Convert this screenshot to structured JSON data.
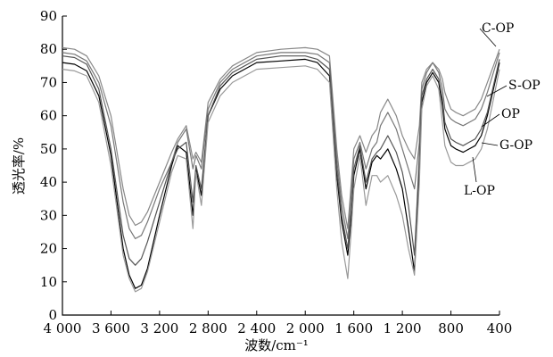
{
  "chart_data": {
    "type": "line",
    "title": "",
    "xlabel": "波数/cm⁻¹",
    "ylabel": "透光率/%",
    "xlim": [
      4000,
      400
    ],
    "ylim": [
      0,
      90
    ],
    "x_reversed": true,
    "grid": false,
    "x_ticks": [
      4000,
      3600,
      3200,
      2800,
      2400,
      2000,
      1600,
      1200,
      800,
      400
    ],
    "x_tick_labels": [
      "4 000",
      "3 600",
      "3 200",
      "2 800",
      "2 400",
      "2 000",
      "1 600",
      "1 200",
      "800",
      "400"
    ],
    "y_ticks": [
      0,
      10,
      20,
      30,
      40,
      50,
      60,
      70,
      80,
      90
    ],
    "y_tick_labels": [
      "0",
      "10",
      "20",
      "30",
      "40",
      "50",
      "60",
      "70",
      "80",
      "90"
    ],
    "x": [
      4000,
      3900,
      3800,
      3700,
      3600,
      3500,
      3450,
      3400,
      3350,
      3300,
      3200,
      3100,
      3050,
      2980,
      2925,
      2900,
      2855,
      2800,
      2700,
      2600,
      2400,
      2200,
      2000,
      1900,
      1800,
      1740,
      1700,
      1650,
      1620,
      1600,
      1550,
      1500,
      1450,
      1410,
      1380,
      1320,
      1250,
      1200,
      1150,
      1100,
      1060,
      1040,
      1000,
      950,
      900,
      870,
      850,
      820,
      800,
      760,
      700,
      650,
      600,
      550,
      500,
      400
    ],
    "series": [
      {
        "name": "C-OP",
        "color": "#888888",
        "values": [
          80.5,
          80,
          78,
          72,
          60,
          38,
          30,
          27,
          28,
          31,
          40,
          49,
          53,
          57,
          47,
          49,
          46,
          64,
          71,
          75,
          79,
          80,
          80.5,
          80,
          78,
          50,
          36,
          26,
          40,
          50,
          54,
          49,
          54,
          56,
          61,
          65,
          60,
          54,
          50,
          47,
          57,
          70,
          74,
          76,
          74,
          71,
          67,
          64,
          62,
          61,
          60,
          61,
          62,
          65,
          70,
          80
        ]
      },
      {
        "name": "S-OP",
        "color": "#777777",
        "values": [
          79,
          78.5,
          76.5,
          70,
          57,
          34,
          26,
          23,
          24,
          28,
          38,
          46,
          52,
          56,
          44,
          48,
          44,
          62,
          70,
          74,
          78,
          79,
          79,
          78.5,
          76,
          47,
          33,
          23,
          37,
          47,
          52,
          44,
          50,
          52,
          57,
          61,
          56,
          50,
          44,
          38,
          52,
          68,
          73,
          76,
          73,
          68,
          62,
          60,
          59,
          58,
          57,
          58,
          59,
          62,
          67,
          79
        ]
      },
      {
        "name": "OP",
        "color": "#000000",
        "values": [
          76,
          75.5,
          73.5,
          66,
          48,
          20,
          12,
          8,
          9,
          14,
          30,
          45,
          51,
          49,
          30,
          44,
          36,
          60,
          68,
          72,
          76,
          76.5,
          77,
          76,
          72,
          42,
          28,
          18,
          30,
          42,
          50,
          38,
          46,
          48,
          47,
          50,
          44,
          38,
          26,
          13,
          45,
          64,
          70,
          73,
          70,
          63,
          56,
          53,
          51,
          50,
          49,
          50,
          51,
          54,
          60,
          76
        ]
      },
      {
        "name": "G-OP",
        "color": "#555555",
        "values": [
          78,
          77.5,
          75.5,
          68,
          50,
          24,
          17,
          15,
          17,
          22,
          34,
          46,
          50,
          52,
          34,
          45,
          38,
          60,
          69,
          73,
          77,
          78,
          78,
          77,
          74,
          44,
          30,
          20,
          32,
          44,
          51,
          40,
          47,
          49,
          50,
          54,
          49,
          43,
          33,
          18,
          48,
          66,
          71,
          74,
          71,
          65,
          58,
          55,
          53,
          52,
          51,
          52,
          53,
          56,
          61,
          77
        ]
      },
      {
        "name": "L-OP",
        "color": "#999999",
        "values": [
          74,
          73.5,
          72,
          64,
          45,
          18,
          11,
          7,
          8,
          13,
          28,
          43,
          48,
          47,
          26,
          43,
          33,
          58,
          66,
          70,
          74,
          74.5,
          75,
          74,
          70,
          38,
          22,
          11,
          26,
          38,
          48,
          33,
          42,
          42,
          40,
          42,
          36,
          30,
          20,
          12,
          40,
          62,
          69,
          72,
          68,
          58,
          51,
          48,
          46,
          45,
          45,
          46,
          47,
          50,
          56,
          74
        ]
      }
    ]
  }
}
